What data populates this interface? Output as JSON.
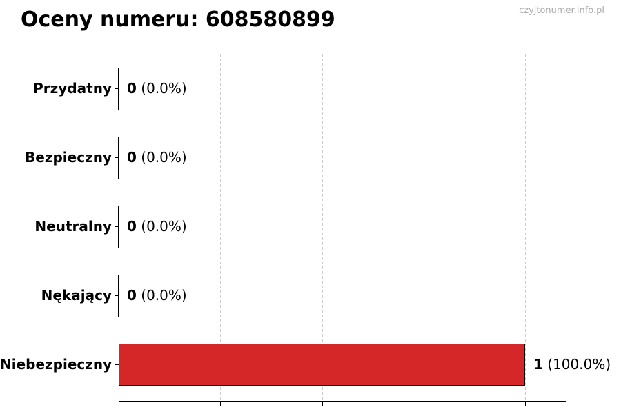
{
  "header": {
    "watermark": "czyjtonumer.info.pl"
  },
  "chart_data": {
    "type": "bar",
    "orientation": "horizontal",
    "title": "Oceny numeru: 608580899",
    "categories": [
      "Przydatny",
      "Bezpieczny",
      "Neutralny",
      "Nękający",
      "Niebezpieczny"
    ],
    "values": [
      0,
      0,
      0,
      0,
      1
    ],
    "value_labels": [
      {
        "count": "0",
        "percent": "(0.0%)"
      },
      {
        "count": "0",
        "percent": "(0.0%)"
      },
      {
        "count": "0",
        "percent": "(0.0%)"
      },
      {
        "count": "0",
        "percent": "(0.0%)"
      },
      {
        "count": "1",
        "percent": "(100.0%)"
      }
    ],
    "xlabel": "",
    "ylabel": "",
    "xlim": [
      0,
      1.1
    ],
    "x_gridlines": [
      0,
      0.25,
      0.5,
      0.75,
      1.0
    ],
    "x_tick_labels": [],
    "grid": "vertical-dashed",
    "legend": "none",
    "colors": {
      "bar_fill": "#d62728",
      "bar_edge": "#000000",
      "gridline": "#cccccc",
      "axis": "#000000",
      "title_text": "#000000",
      "watermark_text": "#ababab",
      "background": "#ffffff"
    }
  }
}
